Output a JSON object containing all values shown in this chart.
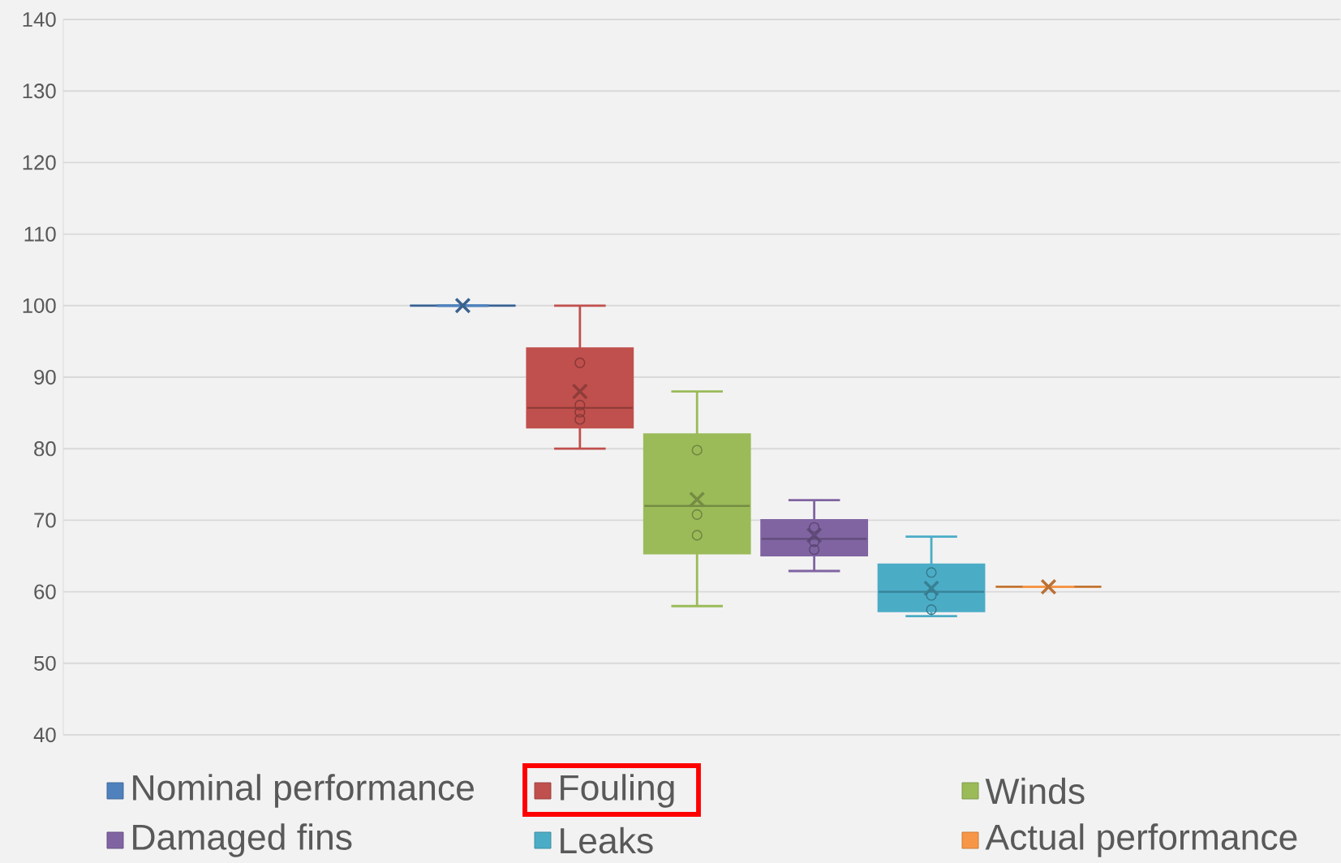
{
  "chart_data": {
    "type": "box",
    "categories": [
      null
    ],
    "series": [
      {
        "name": "Nominal performance",
        "color": "#4f81bd",
        "boxes": [
          {
            "low": 100,
            "q1": 100,
            "median": 100,
            "q3": 100,
            "high": 100,
            "mean": 100
          }
        ]
      },
      {
        "name": "Fouling",
        "color": "#c0504d",
        "boxes": [
          {
            "low": 80,
            "q1": 83,
            "median": 85.7,
            "q3": 94,
            "high": 100,
            "mean": 88,
            "outliers": [
              92,
              86.1,
              85.1,
              84.1
            ]
          }
        ]
      },
      {
        "name": "Winds",
        "color": "#9bbb59",
        "boxes": [
          {
            "low": 58,
            "q1": 65.4,
            "median": 72,
            "q3": 82,
            "high": 88,
            "mean": 72.9,
            "outliers": [
              79.8,
              70.8,
              67.9
            ]
          }
        ]
      },
      {
        "name": "Damaged fins",
        "color": "#8064a2",
        "boxes": [
          {
            "low": 62.9,
            "q1": 65.1,
            "median": 67.4,
            "q3": 70,
            "high": 72.8,
            "mean": 67.9,
            "outliers": [
              69,
              67,
              65.9
            ]
          }
        ]
      },
      {
        "name": "Leaks",
        "color": "#4bacc6",
        "boxes": [
          {
            "low": 56.6,
            "q1": 57.3,
            "median": 60,
            "q3": 63.8,
            "high": 67.7,
            "mean": 60.5,
            "outliers": [
              62.7,
              59.5,
              57.5
            ]
          }
        ]
      },
      {
        "name": "Actual performance",
        "color": "#f79646",
        "boxes": [
          {
            "low": 60.7,
            "q1": 60.7,
            "median": 60.7,
            "q3": 60.7,
            "high": 60.7,
            "mean": 60.7
          }
        ]
      }
    ],
    "ylim": [
      40,
      140
    ],
    "yticks": [
      40,
      50,
      60,
      70,
      80,
      90,
      100,
      110,
      120,
      130,
      140
    ],
    "grid": "y",
    "legend": "bottom",
    "tick_labels": "y"
  }
}
